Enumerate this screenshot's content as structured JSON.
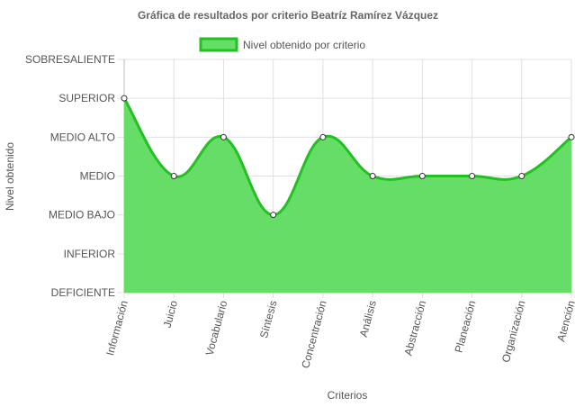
{
  "chart_data": {
    "type": "area",
    "title": "Gráfica de resultados por criterio Beatríz Ramírez Vázquez",
    "xlabel": "Criterios",
    "ylabel": "Nivel obtenido",
    "levels": [
      "DEFICIENTE",
      "INFERIOR",
      "MEDIO BAJO",
      "MEDIO",
      "MEDIO ALTO",
      "SUPERIOR",
      "SOBRESALIENTE"
    ],
    "categories": [
      "Información",
      "Juicio",
      "Vocabulario",
      "Síntesis",
      "Concentración",
      "Análisis",
      "Abstracción",
      "Planeación",
      "Organización",
      "Atención"
    ],
    "series": [
      {
        "name": "Nivel obtenido por criterio",
        "values": [
          5,
          3,
          4,
          2,
          4,
          3,
          3,
          3,
          3,
          4
        ]
      }
    ],
    "ylim": [
      0,
      6
    ],
    "grid": true,
    "legend": "top-center",
    "colors": {
      "fill": "#66dd66",
      "line": "#22c122",
      "point_fill": "#ffffff",
      "point_stroke": "#333333",
      "grid": "#e0e0e0"
    }
  }
}
